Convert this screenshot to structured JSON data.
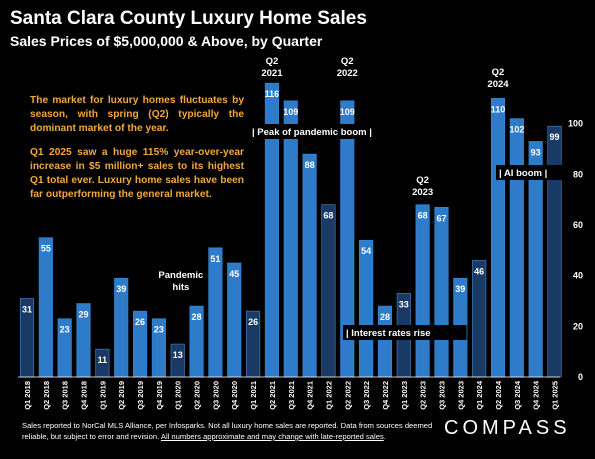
{
  "header": {
    "title": "Santa Clara County Luxury Home Sales",
    "subtitle": "Sales Prices of $5,000,000 & Above, by Quarter"
  },
  "commentary": {
    "paragraph1": "The market for luxury homes fluctuates by season, with spring (Q2) typically the dominant market of the year.",
    "paragraph2": "Q1 2025 saw a huge 115% year-over-year increase in $5 million+ sales to its highest Q1 total ever. Luxury home sales have been far outperforming the general market."
  },
  "footer": {
    "note_plain": "Sales reported to NorCal MLS Alliance, per Infosparks. Not all luxury home sales are reported. Data from sources deemed reliable, but subject to error and revision. ",
    "note_underlined": "All numbers approximate and may change with late-reported sales",
    "note_end": ".",
    "brand": "COMPASS"
  },
  "colors": {
    "background": "#000000",
    "bar_light": "#2e7bc9",
    "bar_dark": "#1a3a66",
    "label_text": "#ffffff",
    "accent_text": "#f2a83b"
  },
  "chart_data": {
    "type": "bar",
    "title": "Santa Clara County Luxury Home Sales",
    "subtitle": "Sales Prices of $5,000,000 & Above, by Quarter",
    "categories": [
      "Q1 2018",
      "Q2 2018",
      "Q3 2018",
      "Q4 2018",
      "Q1 2019",
      "Q2 2019",
      "Q3 2019",
      "Q4 2019",
      "Q1 2020",
      "Q2 2020",
      "Q3 2020",
      "Q4 2020",
      "Q1 2021",
      "Q2 2021",
      "Q3 2021",
      "Q4 2021",
      "Q1 2022",
      "Q2 2022",
      "Q3 2022",
      "Q4 2022",
      "Q1 2023",
      "Q2 2023",
      "Q3 2023",
      "Q4 2023",
      "Q1 2024",
      "Q2 2024",
      "Q3 2024",
      "Q4 2024",
      "Q1 2025"
    ],
    "values": [
      31,
      55,
      23,
      29,
      11,
      39,
      26,
      23,
      13,
      28,
      51,
      45,
      26,
      116,
      109,
      88,
      68,
      109,
      54,
      28,
      33,
      68,
      67,
      39,
      46,
      110,
      102,
      93,
      99
    ],
    "highlight_q1": [
      true,
      false,
      false,
      false,
      true,
      false,
      false,
      false,
      true,
      false,
      false,
      false,
      true,
      false,
      false,
      false,
      true,
      false,
      false,
      false,
      true,
      false,
      false,
      false,
      true,
      false,
      false,
      false,
      true
    ],
    "ylim": [
      0,
      120
    ],
    "yticks": [
      0,
      20,
      40,
      60,
      80,
      100
    ],
    "grid": false,
    "annotations": [
      {
        "text": "Q2\n2021",
        "category": "Q2 2021"
      },
      {
        "text": "Q2\n2022",
        "category": "Q2 2022"
      },
      {
        "text": "Q2\n2023",
        "category": "Q2 2023"
      },
      {
        "text": "Q2\n2024",
        "category": "Q2 2024"
      },
      {
        "text": "Pandemic\nhits",
        "category": "Q4 2019"
      },
      {
        "text": "| Peak of pandemic boom |",
        "category": "Q2 2021"
      },
      {
        "text": "| Interest rates rise",
        "category": "Q4 2022"
      },
      {
        "text": "| AI boom |",
        "category": "Q4 2024"
      }
    ]
  }
}
